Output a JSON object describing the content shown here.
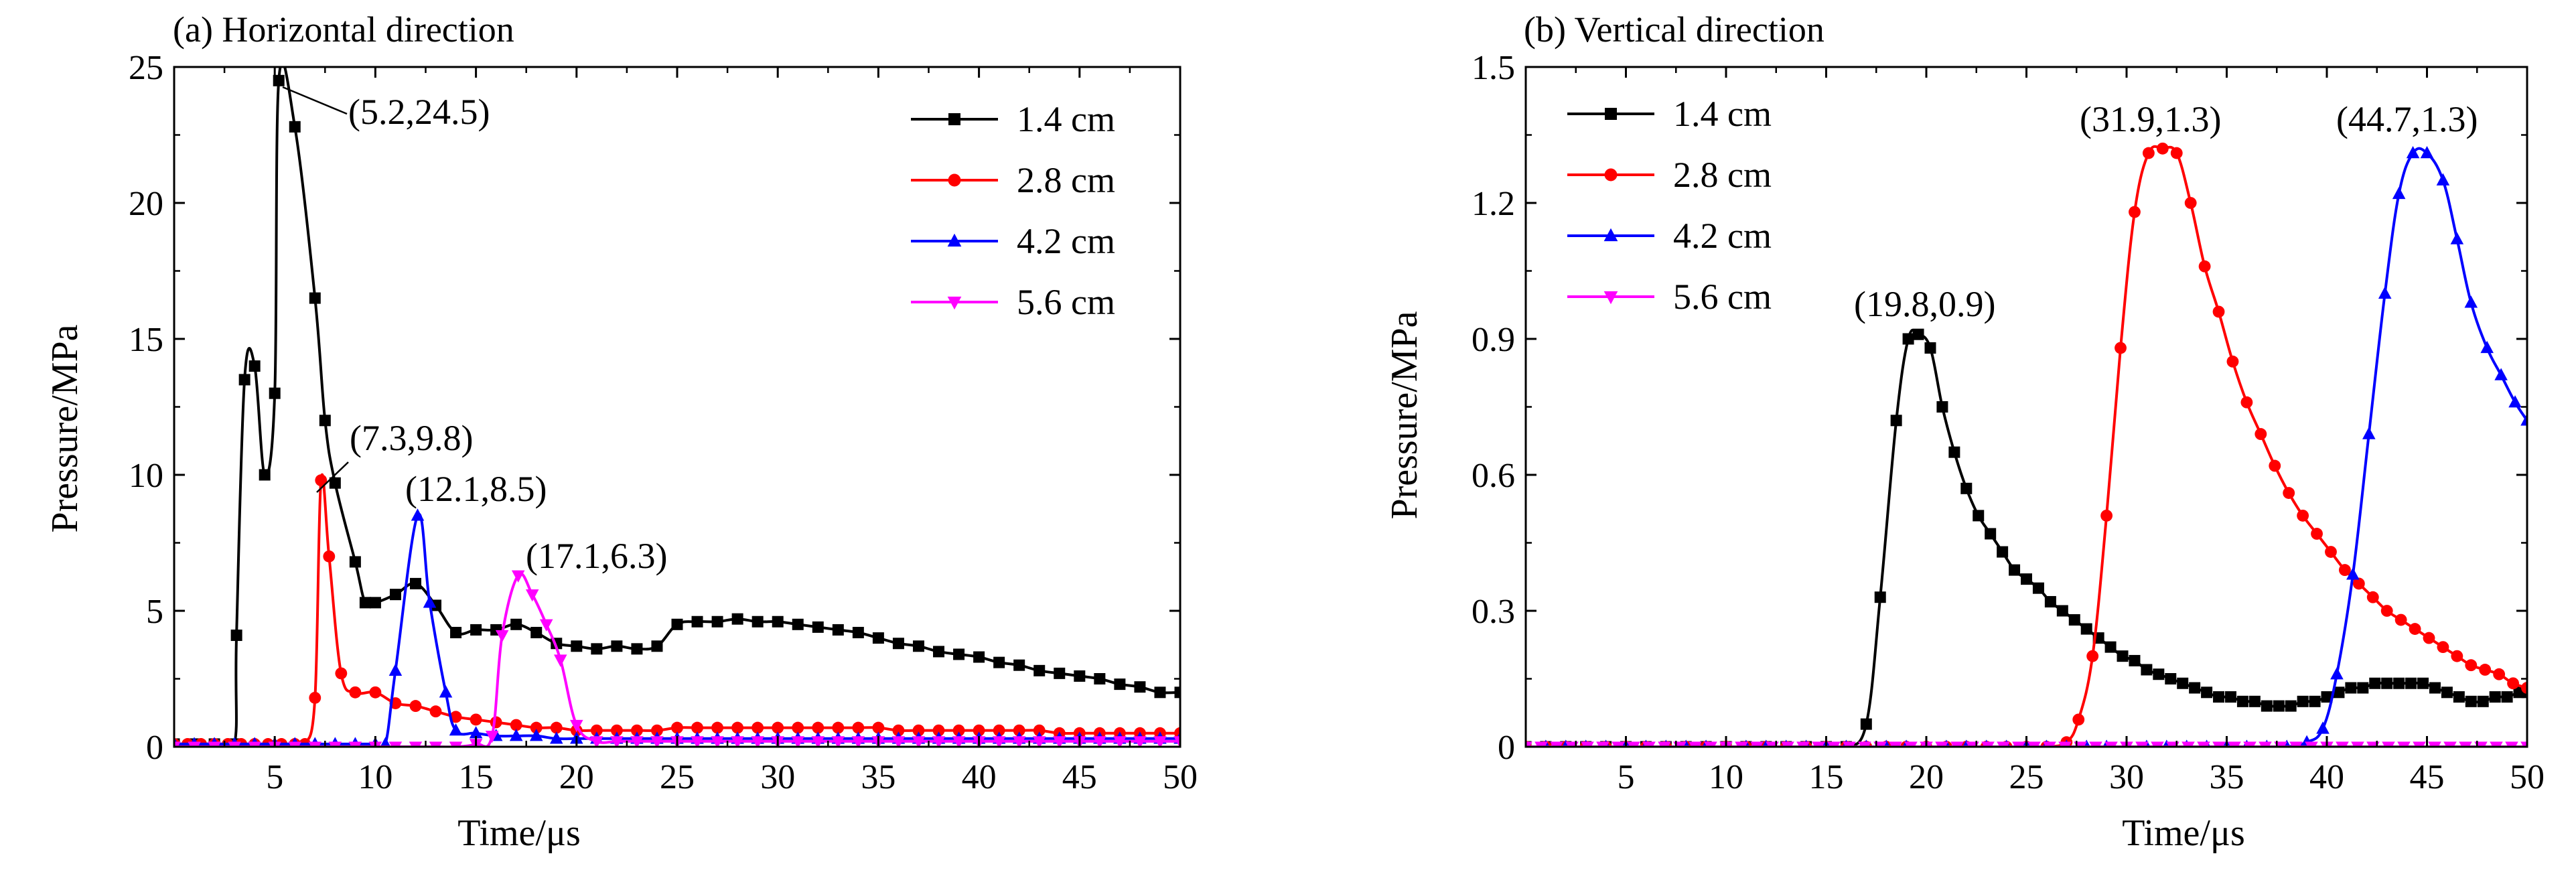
{
  "chart_data": [
    {
      "type": "line",
      "title": "(a) Horizontal direction",
      "xlabel": "Time/μs",
      "ylabel": "Pressure/MPa",
      "xlim": [
        0,
        50
      ],
      "ylim": [
        0,
        25
      ],
      "xticks": [
        5,
        10,
        15,
        20,
        25,
        30,
        35,
        40,
        45,
        50
      ],
      "yticks": [
        0,
        5,
        10,
        15,
        20,
        25
      ],
      "grid": false,
      "legend_position": "top-right",
      "annotations": [
        {
          "text": "(5.2,24.5)",
          "x": 5.2,
          "y": 24.5
        },
        {
          "text": "(7.3,9.8)",
          "x": 7.3,
          "y": 9.8
        },
        {
          "text": "(12.1,8.5)",
          "x": 12.1,
          "y": 8.5
        },
        {
          "text": "(17.1,6.3)",
          "x": 17.1,
          "y": 6.3
        }
      ],
      "series": [
        {
          "name": "1.4 cm",
          "color": "#000000",
          "marker": "square",
          "x": [
            0,
            1,
            2,
            3,
            3.1,
            3.5,
            4,
            4.5,
            5,
            5.2,
            6,
            7,
            7.5,
            8,
            9,
            9.5,
            10,
            11,
            12,
            13,
            14,
            15,
            16,
            17,
            18,
            19,
            20,
            21,
            22,
            23,
            24,
            25,
            26,
            27,
            28,
            29,
            30,
            31,
            32,
            33,
            34,
            35,
            36,
            37,
            38,
            39,
            40,
            41,
            42,
            43,
            44,
            45,
            46,
            47,
            48,
            49,
            50
          ],
          "y": [
            0.1,
            0.1,
            0.1,
            0.1,
            4.1,
            13.5,
            14.0,
            10.0,
            13.0,
            24.5,
            22.8,
            16.5,
            12.0,
            9.7,
            6.8,
            5.3,
            5.3,
            5.6,
            6.0,
            5.2,
            4.2,
            4.3,
            4.3,
            4.5,
            4.2,
            3.8,
            3.7,
            3.6,
            3.7,
            3.6,
            3.7,
            4.5,
            4.6,
            4.6,
            4.7,
            4.6,
            4.6,
            4.5,
            4.4,
            4.3,
            4.2,
            4.0,
            3.8,
            3.7,
            3.5,
            3.4,
            3.3,
            3.1,
            3.0,
            2.8,
            2.7,
            2.6,
            2.5,
            2.3,
            2.2,
            2.0,
            2.0
          ]
        },
        {
          "name": "2.8 cm",
          "color": "#ff0000",
          "marker": "circle",
          "x": [
            0,
            2,
            4,
            6,
            6.5,
            7,
            7.3,
            7.7,
            8.3,
            9,
            10,
            11,
            12,
            13,
            14,
            15,
            16,
            17,
            18,
            19,
            20,
            21,
            22,
            23,
            24,
            25,
            26,
            27,
            28,
            29,
            30,
            31,
            32,
            33,
            34,
            35,
            36,
            37,
            38,
            39,
            40,
            41,
            42,
            43,
            44,
            45,
            46,
            47,
            48,
            49,
            50
          ],
          "y": [
            0.1,
            0.1,
            0.1,
            0.1,
            0.1,
            1.8,
            9.8,
            7.0,
            2.7,
            2.0,
            2.0,
            1.6,
            1.5,
            1.3,
            1.1,
            1.0,
            0.9,
            0.8,
            0.7,
            0.7,
            0.6,
            0.6,
            0.6,
            0.6,
            0.6,
            0.7,
            0.7,
            0.7,
            0.7,
            0.7,
            0.7,
            0.7,
            0.7,
            0.7,
            0.7,
            0.7,
            0.6,
            0.6,
            0.6,
            0.6,
            0.6,
            0.6,
            0.6,
            0.6,
            0.5,
            0.5,
            0.5,
            0.5,
            0.5,
            0.5,
            0.5
          ]
        },
        {
          "name": "4.2 cm",
          "color": "#0000ff",
          "marker": "triangle-up",
          "x": [
            0,
            1,
            2,
            3,
            4,
            5,
            6,
            7,
            8,
            9,
            10,
            10.5,
            11,
            12.1,
            12.7,
            13.5,
            14,
            15,
            16,
            17,
            18,
            19,
            20,
            21,
            22,
            23,
            24,
            25,
            26,
            27,
            28,
            29,
            30,
            31,
            32,
            33,
            34,
            35,
            36,
            37,
            38,
            39,
            40,
            41,
            42,
            43,
            44,
            45,
            46,
            47,
            48,
            49,
            50
          ],
          "y": [
            0.1,
            0.1,
            0.1,
            0.1,
            0.1,
            0.1,
            0.1,
            0.1,
            0.1,
            0.1,
            0.1,
            0.1,
            2.8,
            8.5,
            5.3,
            2.0,
            0.6,
            0.5,
            0.4,
            0.4,
            0.4,
            0.3,
            0.3,
            0.3,
            0.3,
            0.3,
            0.3,
            0.3,
            0.3,
            0.3,
            0.3,
            0.3,
            0.3,
            0.3,
            0.3,
            0.3,
            0.3,
            0.3,
            0.3,
            0.3,
            0.3,
            0.3,
            0.3,
            0.3,
            0.3,
            0.3,
            0.3,
            0.3,
            0.3,
            0.3,
            0.3,
            0.3,
            0.3
          ]
        },
        {
          "name": "5.6 cm",
          "color": "#ff00ff",
          "marker": "triangle-down",
          "x": [
            0,
            1,
            2,
            3,
            4,
            5,
            6,
            7,
            8,
            9,
            10,
            11,
            12,
            13,
            14,
            15,
            15.8,
            16.3,
            17.1,
            17.8,
            18.5,
            19.2,
            20,
            21,
            22,
            23,
            24,
            25,
            26,
            27,
            28,
            29,
            30,
            31,
            32,
            33,
            34,
            35,
            36,
            37,
            38,
            39,
            40,
            41,
            42,
            43,
            44,
            45,
            46,
            47,
            48,
            49,
            50
          ],
          "y": [
            0,
            0,
            0,
            0,
            0,
            0,
            0,
            0,
            0,
            0,
            0,
            0,
            0,
            0,
            0,
            0.1,
            0.4,
            4.1,
            6.3,
            5.6,
            4.5,
            3.2,
            0.8,
            0.2,
            0.2,
            0.2,
            0.2,
            0.2,
            0.2,
            0.2,
            0.2,
            0.2,
            0.2,
            0.2,
            0.2,
            0.2,
            0.2,
            0.2,
            0.2,
            0.2,
            0.2,
            0.2,
            0.2,
            0.2,
            0.2,
            0.2,
            0.2,
            0.2,
            0.2,
            0.2,
            0.2,
            0.2,
            0.2
          ]
        }
      ]
    },
    {
      "type": "line",
      "title": "(b) Vertical direction",
      "xlabel": "Time/μs",
      "ylabel": "Pressure/MPa",
      "xlim": [
        0,
        50
      ],
      "ylim": [
        0,
        1.5
      ],
      "xticks": [
        5,
        10,
        15,
        20,
        25,
        30,
        35,
        40,
        45,
        50
      ],
      "yticks": [
        0,
        0.3,
        0.6,
        0.9,
        1.2,
        1.5
      ],
      "ytick_labels": [
        "0",
        "0.3",
        "0.6",
        "0.9",
        "1.2",
        "1.5"
      ],
      "grid": false,
      "legend_position": "top-left",
      "annotations": [
        {
          "text": "(19.8,0.9)",
          "x": 19.8,
          "y": 0.9
        },
        {
          "text": "(31.9,1.3)",
          "x": 31.9,
          "y": 1.3
        },
        {
          "text": "(44.7,1.3)",
          "x": 44.7,
          "y": 1.3
        }
      ],
      "series": [
        {
          "name": "1.4 cm",
          "color": "#000000",
          "marker": "square",
          "x": [
            0,
            1,
            2,
            3,
            4,
            5,
            6,
            7,
            8,
            9,
            10,
            11,
            12,
            13,
            14,
            15,
            16,
            17,
            17.7,
            18.5,
            19.1,
            19.6,
            20.2,
            20.8,
            21.4,
            22,
            22.6,
            23.2,
            23.8,
            24.4,
            25,
            25.6,
            26.2,
            26.8,
            27.4,
            28,
            28.6,
            29.2,
            29.8,
            30.4,
            31,
            31.6,
            32.2,
            32.8,
            33.4,
            34,
            34.6,
            35.2,
            35.8,
            36.4,
            37,
            37.6,
            38.2,
            38.8,
            39.4,
            40,
            40.6,
            41.2,
            41.8,
            42.4,
            43,
            43.6,
            44.2,
            44.8,
            45.4,
            46,
            46.6,
            47.2,
            47.8,
            48.4,
            49,
            49.6,
            50
          ],
          "y": [
            0,
            0,
            0,
            0,
            0,
            0,
            0,
            0,
            0,
            0,
            0,
            0,
            0,
            0,
            0,
            0,
            0,
            0.05,
            0.33,
            0.72,
            0.9,
            0.91,
            0.88,
            0.75,
            0.65,
            0.57,
            0.51,
            0.47,
            0.43,
            0.39,
            0.37,
            0.35,
            0.32,
            0.3,
            0.28,
            0.26,
            0.24,
            0.22,
            0.2,
            0.19,
            0.17,
            0.16,
            0.15,
            0.14,
            0.13,
            0.12,
            0.11,
            0.11,
            0.1,
            0.1,
            0.09,
            0.09,
            0.09,
            0.1,
            0.1,
            0.11,
            0.12,
            0.13,
            0.13,
            0.14,
            0.14,
            0.14,
            0.14,
            0.14,
            0.13,
            0.12,
            0.11,
            0.1,
            0.1,
            0.11,
            0.11,
            0.12,
            0.12
          ]
        },
        {
          "name": "2.8 cm",
          "color": "#ff0000",
          "marker": "circle",
          "x": [
            0,
            1,
            2,
            3,
            4,
            5,
            6,
            7,
            8,
            9,
            10,
            11,
            12,
            13,
            14,
            15,
            16,
            17,
            18,
            19,
            20,
            21,
            22,
            23,
            24,
            25,
            26,
            27,
            27.6,
            28.3,
            29,
            29.7,
            30.4,
            31.1,
            31.8,
            32.5,
            33.2,
            33.9,
            34.6,
            35.3,
            36,
            36.7,
            37.4,
            38.1,
            38.8,
            39.5,
            40.2,
            40.9,
            41.6,
            42.3,
            43,
            43.7,
            44.4,
            45.1,
            45.8,
            46.5,
            47.2,
            47.9,
            48.6,
            49.3,
            50
          ],
          "y": [
            0,
            0,
            0,
            0,
            0,
            0,
            0,
            0,
            0,
            0,
            0,
            0,
            0,
            0,
            0,
            0,
            0,
            0,
            0,
            0,
            0,
            0,
            0,
            0,
            0,
            0,
            0,
            0.01,
            0.06,
            0.2,
            0.51,
            0.88,
            1.18,
            1.31,
            1.32,
            1.31,
            1.2,
            1.06,
            0.96,
            0.85,
            0.76,
            0.69,
            0.62,
            0.56,
            0.51,
            0.47,
            0.43,
            0.39,
            0.36,
            0.33,
            0.3,
            0.28,
            0.26,
            0.24,
            0.22,
            0.2,
            0.18,
            0.17,
            0.16,
            0.14,
            0.13
          ]
        },
        {
          "name": "4.2 cm",
          "color": "#0000ff",
          "marker": "triangle-up",
          "x": [
            0,
            1,
            2,
            3,
            4,
            5,
            6,
            7,
            8,
            9,
            10,
            11,
            12,
            13,
            14,
            15,
            16,
            17,
            18,
            19,
            20,
            21,
            22,
            23,
            24,
            25,
            26,
            27,
            28,
            29,
            30,
            31,
            32,
            33,
            34,
            35,
            36,
            37,
            38,
            39,
            39.8,
            40.5,
            41.3,
            42.1,
            42.9,
            43.6,
            44.3,
            45,
            45.8,
            46.5,
            47.2,
            48,
            48.7,
            49.4,
            50
          ],
          "y": [
            0,
            0,
            0,
            0,
            0,
            0,
            0,
            0,
            0,
            0,
            0,
            0,
            0,
            0,
            0,
            0,
            0,
            0,
            0,
            0,
            0,
            0,
            0,
            0,
            0,
            0,
            0,
            0,
            0,
            0,
            0,
            0,
            0,
            0,
            0,
            0,
            0,
            0,
            0,
            0.01,
            0.04,
            0.16,
            0.38,
            0.69,
            1.0,
            1.22,
            1.31,
            1.31,
            1.25,
            1.12,
            0.98,
            0.88,
            0.82,
            0.76,
            0.72
          ]
        },
        {
          "name": "5.6 cm",
          "color": "#ff00ff",
          "marker": "triangle-down",
          "x": [
            0,
            10,
            20,
            30,
            40,
            50
          ],
          "y": [
            0,
            0,
            0,
            0,
            0,
            0
          ]
        }
      ]
    }
  ]
}
